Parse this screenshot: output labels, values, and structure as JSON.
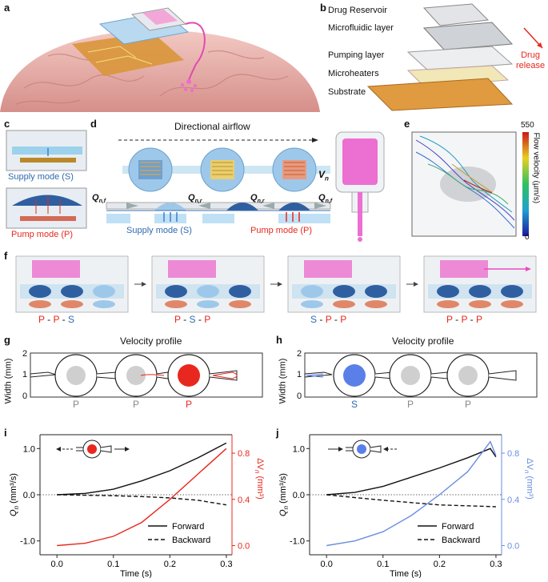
{
  "panels": {
    "a": "a",
    "b": "b",
    "c": "c",
    "d": "d",
    "e": "e",
    "f": "f",
    "g": "g",
    "h": "h",
    "i": "i",
    "j": "j"
  },
  "panel_b": {
    "labels": [
      "Drug Reservoir",
      "Microfluidic layer",
      "Pumping layer",
      "Microheaters",
      "Substrate"
    ],
    "release_1": "Drug",
    "release_2": "release"
  },
  "panel_c": {
    "supply": "Supply mode (S)",
    "pump": "Pump mode (P)"
  },
  "panel_d": {
    "airflow": "Directional airflow",
    "vn": "V",
    "vn_sub": "n",
    "q_labels": [
      {
        "q": "Q",
        "sub": "n,f"
      },
      {
        "q": "Q",
        "sub": "n,r"
      },
      {
        "q": "Q",
        "sub": "n,r"
      },
      {
        "q": "Q",
        "sub": "n,f"
      }
    ],
    "supply": "Supply mode (S)",
    "pump": "Pump mode (P)"
  },
  "panel_e": {
    "max": "550",
    "min": "0",
    "axis_title": "Flow velocity (µm/s)"
  },
  "panel_f": {
    "sequences": [
      [
        "P",
        "P",
        "S"
      ],
      [
        "P",
        "S",
        "P"
      ],
      [
        "S",
        "P",
        "P"
      ],
      [
        "P",
        "P",
        "P"
      ]
    ],
    "dash": "-"
  },
  "panel_g": {
    "title": "Velocity profile",
    "ylabel": "Width (mm)",
    "yticks": [
      "2",
      "1",
      "0"
    ],
    "modes": [
      "P",
      "P",
      "P"
    ]
  },
  "panel_h": {
    "title": "Velocity profile",
    "ylabel": "Width (mm)",
    "yticks": [
      "2",
      "1",
      "0"
    ],
    "modes": [
      "S",
      "P",
      "P"
    ]
  },
  "colors": {
    "pump_red": "#e8281e",
    "supply_blue": "#5b7fe8",
    "line_i": "#e8281e",
    "line_j": "#6a8ee0",
    "black": "#111111",
    "gray": "#cfcfcf"
  },
  "chart_data": [
    {
      "id": "i",
      "type": "line",
      "xlabel": "Time (s)",
      "ylabel_left": "Q",
      "ylabel_left_sub": "n",
      "ylabel_left_unit": " (mm³/s)",
      "ylabel_right": "ΔV",
      "ylabel_right_sub": "n",
      "ylabel_right_unit": " (mm³)",
      "xlim": [
        -0.03,
        0.31
      ],
      "xticks": [
        "0.0",
        "0.1",
        "0.2",
        "0.3"
      ],
      "ylim_left": [
        -1.3,
        1.3
      ],
      "yticks_left": [
        "1.0",
        "0.0",
        "-1.0"
      ],
      "ylim_right": [
        -0.08,
        0.96
      ],
      "yticks_right": [
        "0.8",
        "0.4",
        "0.0"
      ],
      "legend": [
        "Forward",
        "Backward"
      ],
      "series": [
        {
          "name": "Forward",
          "axis": "left",
          "style": "solid",
          "x": [
            0,
            0.05,
            0.1,
            0.15,
            0.2,
            0.25,
            0.3
          ],
          "y": [
            0,
            0.03,
            0.12,
            0.3,
            0.52,
            0.8,
            1.12
          ]
        },
        {
          "name": "Backward",
          "axis": "left",
          "style": "dashed",
          "x": [
            0,
            0.05,
            0.1,
            0.15,
            0.2,
            0.25,
            0.3
          ],
          "y": [
            0,
            -0.01,
            -0.02,
            -0.04,
            -0.07,
            -0.12,
            -0.22
          ]
        },
        {
          "axis": "right",
          "style": "solid",
          "x": [
            0,
            0.05,
            0.1,
            0.15,
            0.2,
            0.25,
            0.3
          ],
          "y": [
            0,
            0.02,
            0.08,
            0.2,
            0.4,
            0.62,
            0.84
          ]
        }
      ]
    },
    {
      "id": "j",
      "type": "line",
      "xlabel": "Time (s)",
      "ylabel_left": "Q",
      "ylabel_left_sub": "n",
      "ylabel_left_unit": " (mm³/s)",
      "ylabel_right": "ΔV",
      "ylabel_right_sub": "n",
      "ylabel_right_unit": " (mm³)",
      "xlim": [
        -0.03,
        0.31
      ],
      "xticks": [
        "0.0",
        "0.1",
        "0.2",
        "0.3"
      ],
      "ylim_left": [
        -1.3,
        1.3
      ],
      "yticks_left": [
        "1.0",
        "0.0",
        "-1.0"
      ],
      "ylim_right": [
        -0.08,
        0.96
      ],
      "yticks_right": [
        "0.8",
        "0.4",
        "0.0"
      ],
      "legend": [
        "Forward",
        "Backward"
      ],
      "series": [
        {
          "name": "Forward",
          "axis": "left",
          "style": "solid",
          "x": [
            0,
            0.05,
            0.1,
            0.15,
            0.2,
            0.25,
            0.29,
            0.3
          ],
          "y": [
            0,
            0.05,
            0.18,
            0.38,
            0.58,
            0.8,
            1.0,
            0.82
          ]
        },
        {
          "name": "Backward",
          "axis": "left",
          "style": "dashed",
          "x": [
            0,
            0.05,
            0.1,
            0.15,
            0.2,
            0.25,
            0.3
          ],
          "y": [
            0,
            -0.06,
            -0.12,
            -0.17,
            -0.22,
            -0.24,
            -0.26
          ]
        },
        {
          "axis": "right",
          "style": "solid",
          "x": [
            0,
            0.05,
            0.1,
            0.15,
            0.2,
            0.25,
            0.29,
            0.3
          ],
          "y": [
            0,
            0.04,
            0.12,
            0.26,
            0.44,
            0.64,
            0.9,
            0.78
          ]
        }
      ]
    }
  ]
}
